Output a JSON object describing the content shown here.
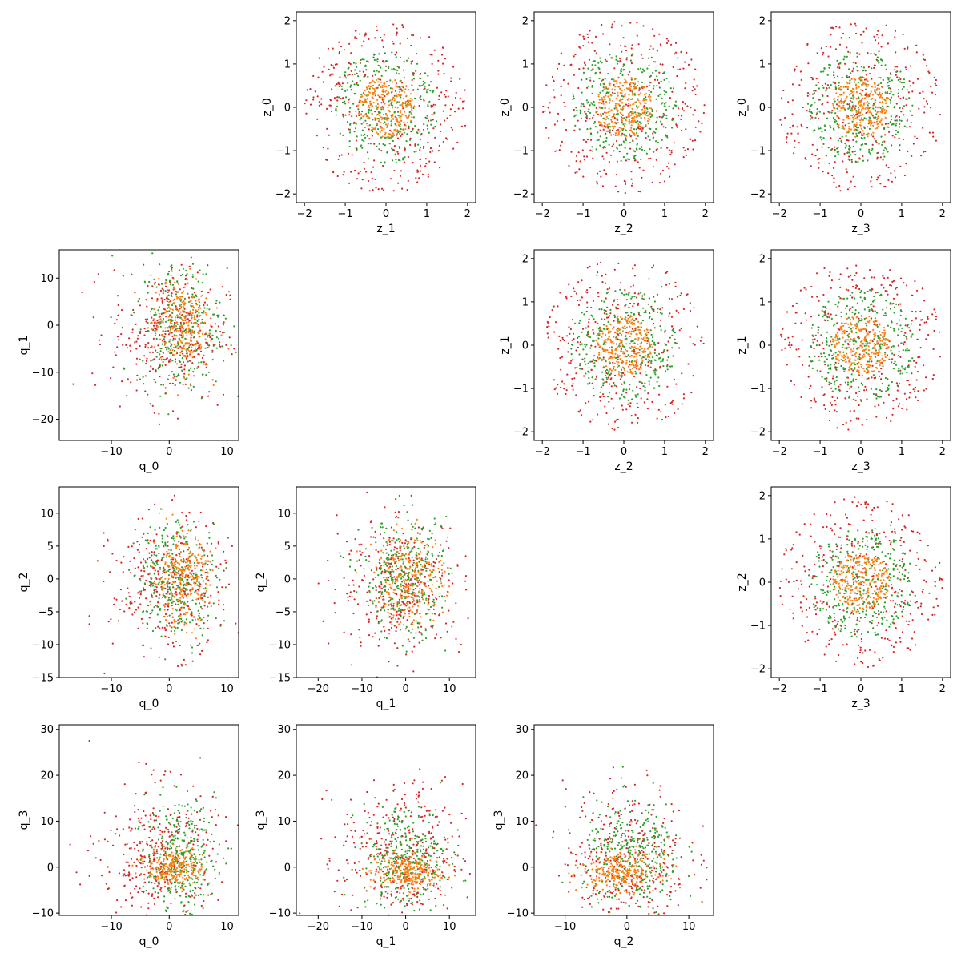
{
  "colors": {
    "inner": "#ff7f0e",
    "middle": "#2ca02c",
    "outer": "#d62728"
  },
  "chart_data": [
    {
      "id": "z0_z1",
      "type": "scatter",
      "xlabel": "z_1",
      "ylabel": "z_0",
      "xlim": [
        -2.2,
        2.2
      ],
      "ylim": [
        -2.2,
        2.2
      ],
      "xticks": [
        -2,
        -1,
        0,
        1,
        2
      ],
      "yticks": [
        -2,
        -1,
        0,
        1,
        2
      ],
      "xtick_labels": [
        "−2",
        "−1",
        "0",
        "1",
        "2"
      ],
      "ytick_labels": [
        "−2",
        "−1",
        "0",
        "1",
        "2"
      ],
      "pattern": {
        "kind": "rings",
        "params": [
          [
            0,
            0,
            0.7,
            0.7
          ],
          [
            0,
            0,
            1.3,
            1.3
          ],
          [
            0,
            0,
            2.0,
            2.0
          ]
        ]
      }
    },
    {
      "id": "z0_z2",
      "type": "scatter",
      "xlabel": "z_2",
      "ylabel": "z_0",
      "xlim": [
        -2.2,
        2.2
      ],
      "ylim": [
        -2.2,
        2.2
      ],
      "xticks": [
        -2,
        -1,
        0,
        1,
        2
      ],
      "yticks": [
        -2,
        -1,
        0,
        1,
        2
      ],
      "xtick_labels": [
        "−2",
        "−1",
        "0",
        "1",
        "2"
      ],
      "ytick_labels": [
        "−2",
        "−1",
        "0",
        "1",
        "2"
      ],
      "pattern": {
        "kind": "rings",
        "params": [
          [
            0,
            0,
            0.7,
            0.7
          ],
          [
            0,
            0,
            1.3,
            1.3
          ],
          [
            0,
            0,
            2.0,
            2.0
          ]
        ]
      }
    },
    {
      "id": "z0_z3",
      "type": "scatter",
      "xlabel": "z_3",
      "ylabel": "z_0",
      "xlim": [
        -2.2,
        2.2
      ],
      "ylim": [
        -2.2,
        2.2
      ],
      "xticks": [
        -2,
        -1,
        0,
        1,
        2
      ],
      "yticks": [
        -2,
        -1,
        0,
        1,
        2
      ],
      "xtick_labels": [
        "−2",
        "−1",
        "0",
        "1",
        "2"
      ],
      "ytick_labels": [
        "−2",
        "−1",
        "0",
        "1",
        "2"
      ],
      "pattern": {
        "kind": "rings",
        "params": [
          [
            0,
            0,
            0.7,
            0.7
          ],
          [
            0,
            0,
            1.3,
            1.3
          ],
          [
            0,
            0,
            2.0,
            2.0
          ]
        ]
      }
    },
    {
      "id": "q1_q0",
      "type": "scatter",
      "xlabel": "q_0",
      "ylabel": "q_1",
      "xlim": [
        -19,
        12
      ],
      "ylim": [
        -24.5,
        16
      ],
      "xticks": [
        -10,
        0,
        10
      ],
      "yticks": [
        -20,
        -10,
        0,
        10
      ],
      "xtick_labels": [
        "−10",
        "0",
        "10"
      ],
      "ytick_labels": [
        "−20",
        "−10",
        "0",
        "10"
      ],
      "pattern": {
        "kind": "blobs",
        "params": [
          [
            2,
            0,
            2.5,
            5
          ],
          [
            2,
            0,
            3.5,
            7
          ],
          [
            0,
            -2,
            5,
            7
          ]
        ]
      }
    },
    {
      "id": "z1_z2",
      "type": "scatter",
      "xlabel": "z_2",
      "ylabel": "z_1",
      "xlim": [
        -2.2,
        2.2
      ],
      "ylim": [
        -2.2,
        2.2
      ],
      "xticks": [
        -2,
        -1,
        0,
        1,
        2
      ],
      "yticks": [
        -2,
        -1,
        0,
        1,
        2
      ],
      "xtick_labels": [
        "−2",
        "−1",
        "0",
        "1",
        "2"
      ],
      "ytick_labels": [
        "−2",
        "−1",
        "0",
        "1",
        "2"
      ],
      "pattern": {
        "kind": "rings",
        "params": [
          [
            0,
            0,
            0.7,
            0.7
          ],
          [
            0,
            0,
            1.3,
            1.3
          ],
          [
            0,
            0,
            2.0,
            2.0
          ]
        ]
      }
    },
    {
      "id": "z1_z3",
      "type": "scatter",
      "xlabel": "z_3",
      "ylabel": "z_1",
      "xlim": [
        -2.2,
        2.2
      ],
      "ylim": [
        -2.2,
        2.2
      ],
      "xticks": [
        -2,
        -1,
        0,
        1,
        2
      ],
      "yticks": [
        -2,
        -1,
        0,
        1,
        2
      ],
      "xtick_labels": [
        "−2",
        "−1",
        "0",
        "1",
        "2"
      ],
      "ytick_labels": [
        "−2",
        "−1",
        "0",
        "1",
        "2"
      ],
      "pattern": {
        "kind": "rings",
        "params": [
          [
            0,
            0,
            0.7,
            0.7
          ],
          [
            0,
            0,
            1.3,
            1.3
          ],
          [
            0,
            0,
            2.0,
            2.0
          ]
        ]
      }
    },
    {
      "id": "q2_q0",
      "type": "scatter",
      "xlabel": "q_0",
      "ylabel": "q_2",
      "xlim": [
        -19,
        12
      ],
      "ylim": [
        -15,
        14
      ],
      "xticks": [
        -10,
        0,
        10
      ],
      "yticks": [
        -15,
        -10,
        -5,
        0,
        5,
        10
      ],
      "xtick_labels": [
        "−10",
        "0",
        "10"
      ],
      "ytick_labels": [
        "−15",
        "−10",
        "−5",
        "0",
        "5",
        "10"
      ],
      "pattern": {
        "kind": "blobs",
        "params": [
          [
            2,
            0,
            2.5,
            3.5
          ],
          [
            1.5,
            0,
            3.5,
            4.5
          ],
          [
            0,
            -1,
            5,
            5
          ]
        ]
      }
    },
    {
      "id": "q2_q1",
      "type": "scatter",
      "xlabel": "q_1",
      "ylabel": "q_2",
      "xlim": [
        -25,
        16
      ],
      "ylim": [
        -15,
        14
      ],
      "xticks": [
        -20,
        -10,
        0,
        10
      ],
      "yticks": [
        -15,
        -10,
        -5,
        0,
        5,
        10
      ],
      "xtick_labels": [
        "−20",
        "−10",
        "0",
        "10"
      ],
      "ytick_labels": [
        "−15",
        "−10",
        "−5",
        "0",
        "5",
        "10"
      ],
      "pattern": {
        "kind": "blobs",
        "params": [
          [
            1,
            0,
            4,
            3.5
          ],
          [
            0,
            0,
            5,
            4.5
          ],
          [
            -1,
            -1,
            7,
            5
          ]
        ]
      }
    },
    {
      "id": "z2_z3",
      "type": "scatter",
      "xlabel": "z_3",
      "ylabel": "z_2",
      "xlim": [
        -2.2,
        2.2
      ],
      "ylim": [
        -2.2,
        2.2
      ],
      "xticks": [
        -2,
        -1,
        0,
        1,
        2
      ],
      "yticks": [
        -2,
        -1,
        0,
        1,
        2
      ],
      "xtick_labels": [
        "−2",
        "−1",
        "0",
        "1",
        "2"
      ],
      "ytick_labels": [
        "−2",
        "−1",
        "0",
        "1",
        "2"
      ],
      "pattern": {
        "kind": "rings",
        "params": [
          [
            0,
            0,
            0.7,
            0.7
          ],
          [
            0,
            0,
            1.3,
            1.3
          ],
          [
            0,
            0,
            2.0,
            2.0
          ]
        ]
      }
    },
    {
      "id": "q3_q0",
      "type": "scatter",
      "xlabel": "q_0",
      "ylabel": "q_3",
      "xlim": [
        -19,
        12
      ],
      "ylim": [
        -10.5,
        31
      ],
      "xticks": [
        -10,
        0,
        10
      ],
      "yticks": [
        -10,
        0,
        10,
        20,
        30
      ],
      "xtick_labels": [
        "−10",
        "0",
        "10"
      ],
      "ytick_labels": [
        "−10",
        "0",
        "10",
        "20",
        "30"
      ],
      "pattern": {
        "kind": "blobs",
        "params": [
          [
            1,
            0,
            2.5,
            2
          ],
          [
            2,
            2,
            3,
            6
          ],
          [
            -2,
            2,
            5,
            8
          ]
        ]
      }
    },
    {
      "id": "q3_q1",
      "type": "scatter",
      "xlabel": "q_1",
      "ylabel": "q_3",
      "xlim": [
        -25,
        16
      ],
      "ylim": [
        -10.5,
        31
      ],
      "xticks": [
        -20,
        -10,
        0,
        10
      ],
      "yticks": [
        -10,
        0,
        10,
        20,
        30
      ],
      "xtick_labels": [
        "−20",
        "−10",
        "0",
        "10"
      ],
      "ytick_labels": [
        "−10",
        "0",
        "10",
        "20",
        "30"
      ],
      "pattern": {
        "kind": "blobs",
        "params": [
          [
            0,
            -1,
            4,
            2
          ],
          [
            0,
            2,
            5,
            6
          ],
          [
            -1,
            2,
            7,
            8
          ]
        ]
      }
    },
    {
      "id": "q3_q2",
      "type": "scatter",
      "xlabel": "q_2",
      "ylabel": "q_3",
      "xlim": [
        -15,
        14
      ],
      "ylim": [
        -10.5,
        31
      ],
      "xticks": [
        -10,
        0,
        10
      ],
      "yticks": [
        -10,
        0,
        10,
        20,
        30
      ],
      "xtick_labels": [
        "−10",
        "0",
        "10"
      ],
      "ytick_labels": [
        "−10",
        "0",
        "10",
        "20",
        "30"
      ],
      "pattern": {
        "kind": "blobs",
        "params": [
          [
            -1,
            -1,
            3,
            2
          ],
          [
            1,
            2,
            4,
            6
          ],
          [
            0,
            2,
            5,
            8
          ]
        ]
      }
    }
  ]
}
